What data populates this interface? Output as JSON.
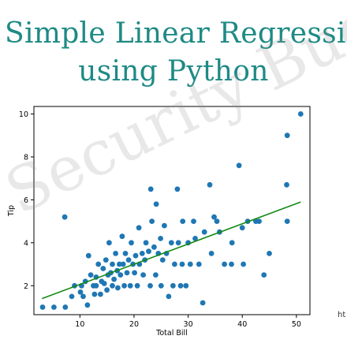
{
  "header": {
    "title_line1": "Simple Linear Regressio",
    "title_line2": "using Python"
  },
  "watermark": "e Security Bud",
  "corner_text": "ht",
  "colors": {
    "title": "#1e8a85",
    "points": "#1f77b4",
    "regression_line": "#138a13"
  },
  "chart_data": {
    "type": "scatter",
    "xlabel": "Total Bill",
    "ylabel": "Tip",
    "xlim": [
      1.5,
      52.5
    ],
    "ylim": [
      0.65,
      10.35
    ],
    "xticks": [
      10,
      20,
      30,
      40,
      50
    ],
    "yticks": [
      2,
      4,
      6,
      8,
      10
    ],
    "grid": false,
    "points": [
      [
        3.1,
        1.0
      ],
      [
        5.2,
        1.0
      ],
      [
        7.3,
        1.0
      ],
      [
        7.2,
        5.2
      ],
      [
        8.5,
        1.5
      ],
      [
        9.0,
        2.0
      ],
      [
        10.1,
        1.7
      ],
      [
        10.3,
        2.0
      ],
      [
        10.6,
        1.5
      ],
      [
        11.0,
        2.2
      ],
      [
        11.4,
        1.1
      ],
      [
        11.6,
        3.4
      ],
      [
        12.0,
        2.5
      ],
      [
        12.5,
        2.0
      ],
      [
        12.7,
        1.6
      ],
      [
        13.0,
        2.0
      ],
      [
        13.0,
        2.4
      ],
      [
        13.4,
        3.0
      ],
      [
        13.8,
        1.6
      ],
      [
        14.0,
        2.2
      ],
      [
        14.3,
        2.8
      ],
      [
        14.5,
        2.1
      ],
      [
        14.8,
        3.2
      ],
      [
        15.0,
        1.8
      ],
      [
        15.2,
        2.5
      ],
      [
        15.4,
        4.0
      ],
      [
        15.7,
        2.6
      ],
      [
        16.0,
        2.0
      ],
      [
        16.0,
        3.0
      ],
      [
        16.3,
        2.3
      ],
      [
        16.6,
        3.5
      ],
      [
        16.9,
        2.7
      ],
      [
        17.0,
        1.9
      ],
      [
        17.3,
        3.0
      ],
      [
        17.5,
        2.5
      ],
      [
        17.8,
        4.3
      ],
      [
        18.0,
        3.0
      ],
      [
        18.2,
        2.0
      ],
      [
        18.4,
        3.5
      ],
      [
        18.7,
        2.6
      ],
      [
        19.0,
        3.2
      ],
      [
        19.3,
        2.0
      ],
      [
        19.5,
        4.0
      ],
      [
        19.8,
        3.0
      ],
      [
        20.1,
        2.6
      ],
      [
        20.3,
        3.4
      ],
      [
        20.6,
        2.0
      ],
      [
        20.9,
        4.7
      ],
      [
        21.0,
        3.0
      ],
      [
        21.5,
        3.5
      ],
      [
        21.7,
        2.5
      ],
      [
        22.0,
        3.2
      ],
      [
        22.2,
        4.0
      ],
      [
        22.7,
        3.6
      ],
      [
        23.0,
        2.0
      ],
      [
        23.1,
        6.5
      ],
      [
        23.3,
        5.0
      ],
      [
        23.7,
        3.8
      ],
      [
        24.0,
        2.5
      ],
      [
        24.1,
        5.8
      ],
      [
        24.5,
        3.5
      ],
      [
        24.9,
        4.2
      ],
      [
        25.0,
        2.0
      ],
      [
        25.3,
        3.2
      ],
      [
        25.6,
        4.8
      ],
      [
        26.0,
        3.5
      ],
      [
        26.4,
        1.5
      ],
      [
        26.9,
        4.0
      ],
      [
        27.2,
        2.0
      ],
      [
        27.5,
        3.0
      ],
      [
        28.0,
        6.5
      ],
      [
        28.2,
        4.0
      ],
      [
        28.6,
        2.0
      ],
      [
        28.9,
        3.0
      ],
      [
        29.0,
        5.0
      ],
      [
        29.6,
        2.0
      ],
      [
        30.0,
        4.0
      ],
      [
        30.4,
        3.0
      ],
      [
        31.0,
        5.0
      ],
      [
        31.3,
        4.2
      ],
      [
        32.0,
        3.0
      ],
      [
        32.7,
        1.2
      ],
      [
        33.0,
        4.5
      ],
      [
        34.0,
        6.7
      ],
      [
        34.3,
        3.5
      ],
      [
        34.8,
        5.2
      ],
      [
        35.3,
        5.0
      ],
      [
        35.8,
        4.5
      ],
      [
        36.7,
        3.0
      ],
      [
        38.0,
        3.0
      ],
      [
        38.1,
        4.0
      ],
      [
        39.4,
        7.6
      ],
      [
        40.0,
        4.7
      ],
      [
        40.2,
        3.0
      ],
      [
        41.0,
        5.0
      ],
      [
        42.5,
        5.0
      ],
      [
        43.1,
        5.0
      ],
      [
        44.0,
        2.5
      ],
      [
        45.0,
        3.5
      ],
      [
        48.2,
        6.7
      ],
      [
        48.3,
        9.0
      ],
      [
        48.3,
        5.0
      ],
      [
        50.8,
        10.0
      ]
    ],
    "regression_line": {
      "x": [
        3.0,
        50.8
      ],
      "y": [
        1.4,
        5.9
      ]
    }
  }
}
